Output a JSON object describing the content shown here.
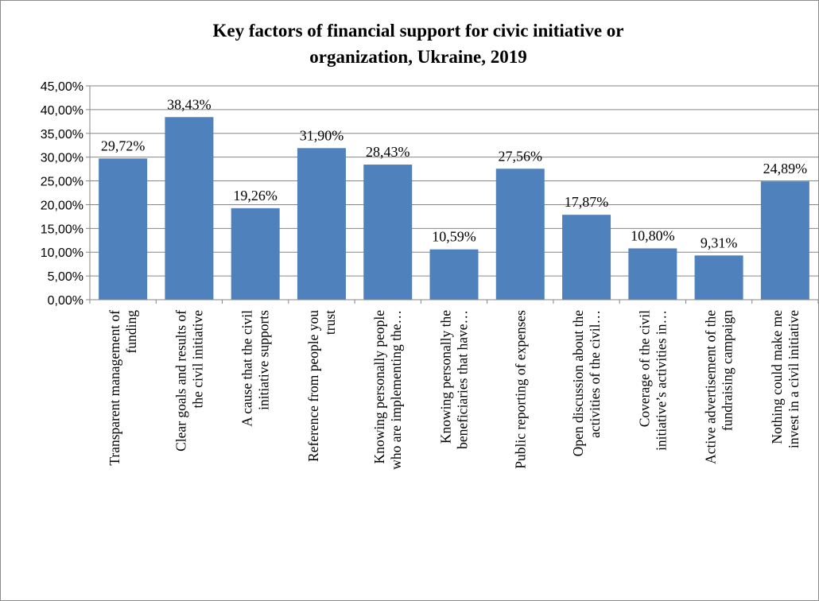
{
  "chart_data": {
    "type": "bar",
    "title_lines": [
      "Key factors of financial support for civic initiative or",
      "organization, Ukraine, 2019"
    ],
    "xlabel": "",
    "ylabel": "",
    "ylim": [
      0,
      45
    ],
    "y_ticks": [
      {
        "value": 0,
        "label": "0,00%"
      },
      {
        "value": 5,
        "label": "5,00%"
      },
      {
        "value": 10,
        "label": "10,00%"
      },
      {
        "value": 15,
        "label": "15,00%"
      },
      {
        "value": 20,
        "label": "20,00%"
      },
      {
        "value": 25,
        "label": "25,00%"
      },
      {
        "value": 30,
        "label": "30,00%"
      },
      {
        "value": 35,
        "label": "35,00%"
      },
      {
        "value": 40,
        "label": "40,00%"
      },
      {
        "value": 45,
        "label": "45,00%"
      }
    ],
    "grid": true,
    "legend": "none",
    "bar_color": "#4f81bd",
    "categories": [
      {
        "lines": [
          "Transparent management of",
          "funding"
        ]
      },
      {
        "lines": [
          "Clear goals and results of",
          "the civil initiative"
        ]
      },
      {
        "lines": [
          "A cause that the civil",
          "initiative supports"
        ]
      },
      {
        "lines": [
          "Reference from people you",
          "trust"
        ]
      },
      {
        "lines": [
          "Knowing personally people",
          "who are implementing the…"
        ]
      },
      {
        "lines": [
          "Knowing personally the",
          "beneficiaries that have…"
        ]
      },
      {
        "lines": [
          "Public reporting of expenses"
        ]
      },
      {
        "lines": [
          "Open discussion about the",
          "activities of the civil…"
        ]
      },
      {
        "lines": [
          "Coverage of the civil",
          "initiative’s activities in…"
        ]
      },
      {
        "lines": [
          "Active advertisement of the",
          "fundraising campaign"
        ]
      },
      {
        "lines": [
          "Nothing could make me",
          "invest in a civil initiative"
        ]
      }
    ],
    "values": [
      29.72,
      38.43,
      19.26,
      31.9,
      28.43,
      10.59,
      27.56,
      17.87,
      10.8,
      9.31,
      24.89
    ],
    "value_labels": [
      "29,72%",
      "38,43%",
      "19,26%",
      "31,90%",
      "28,43%",
      "10,59%",
      "27,56%",
      "17,87%",
      "10,80%",
      "9,31%",
      "24,89%"
    ]
  }
}
